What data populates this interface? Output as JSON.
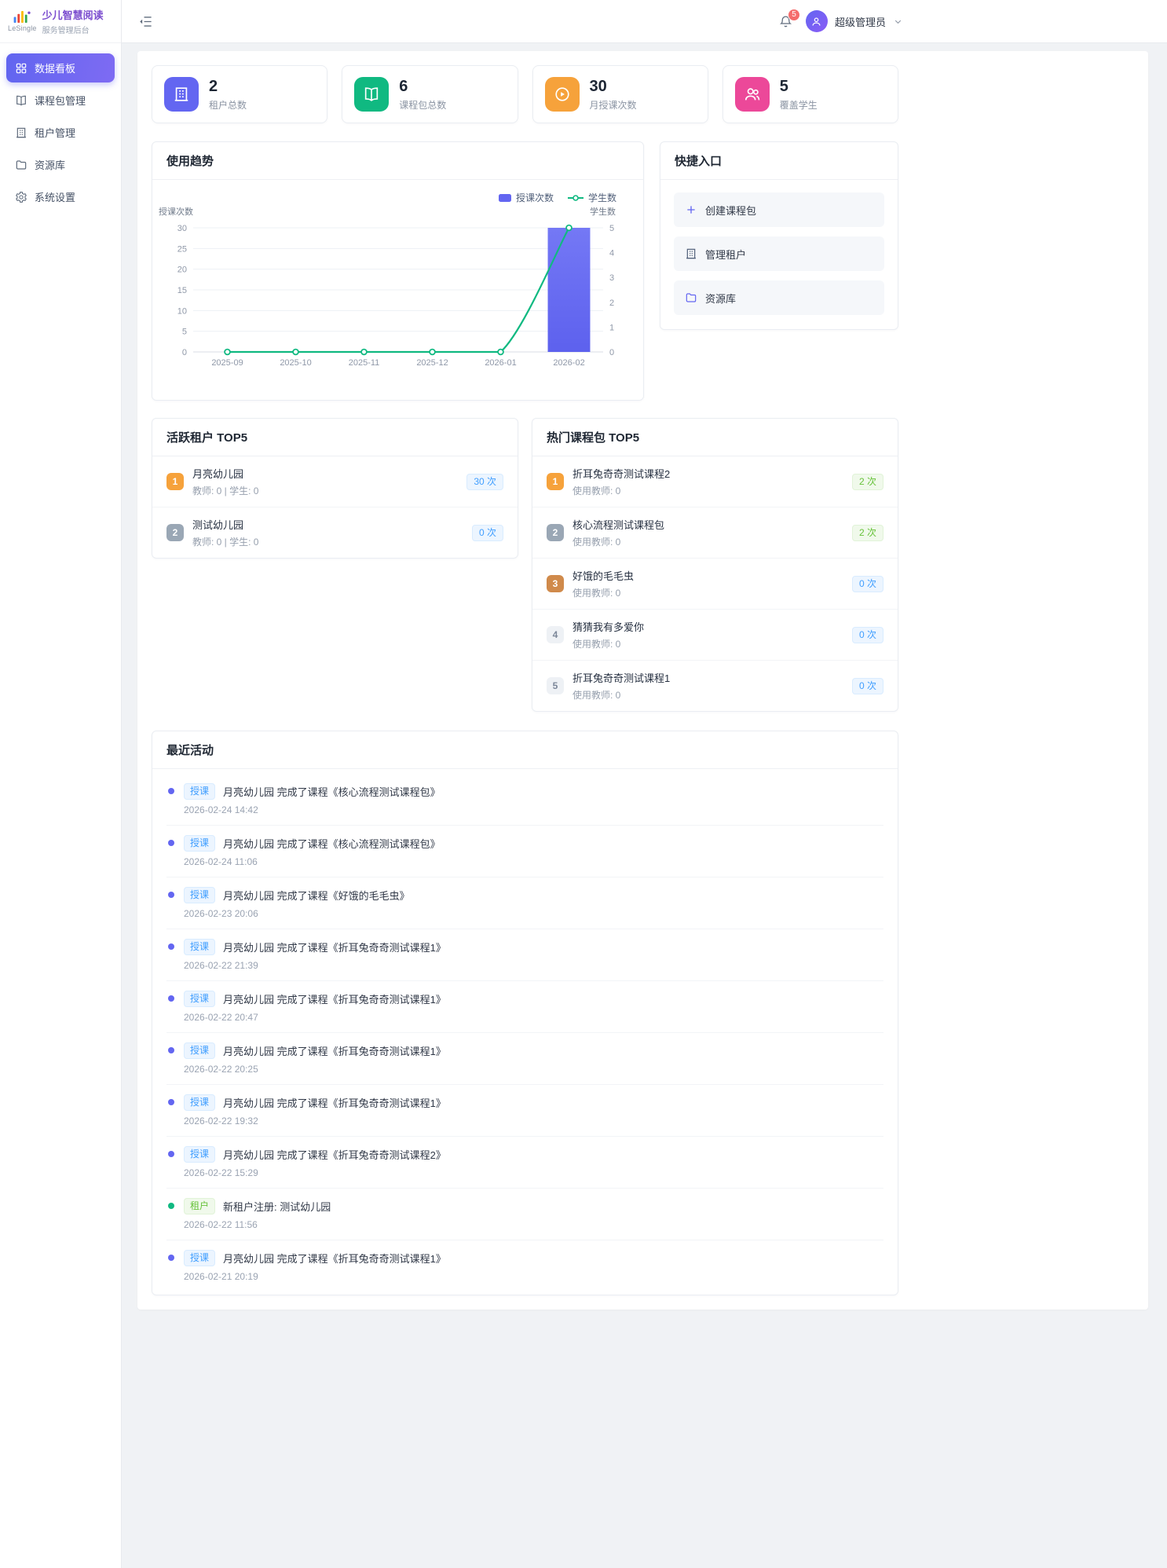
{
  "app": {
    "brand_name": "LeSingle",
    "product_name": "少儿智慧阅读",
    "product_subtitle": "服务管理后台"
  },
  "colors": {
    "accent_indigo": "#6366f1",
    "primary_blue": "#409eff",
    "success_green": "#10b981",
    "warning_orange": "#f6a23b",
    "pink": "#ec4899",
    "brand_purple": "#7b4dcf",
    "badge_red": "#f56c6c"
  },
  "sidebar": {
    "items": [
      {
        "key": "dashboard",
        "label": "数据看板",
        "icon": "dashboard",
        "state": "active"
      },
      {
        "key": "course-packages",
        "label": "课程包管理",
        "icon": "book"
      },
      {
        "key": "tenants",
        "label": "租户管理",
        "icon": "building"
      },
      {
        "key": "resources",
        "label": "资源库",
        "icon": "folder"
      },
      {
        "key": "settings",
        "label": "系统设置",
        "icon": "gear"
      }
    ]
  },
  "header": {
    "notification_count": "5",
    "user_name": "超级管理员"
  },
  "stats": [
    {
      "value": "2",
      "label": "租户总数",
      "icon": "building",
      "color": "#6366f1"
    },
    {
      "value": "6",
      "label": "课程包总数",
      "icon": "book",
      "color": "#10b981"
    },
    {
      "value": "30",
      "label": "月授课次数",
      "icon": "play",
      "color": "#f6a23b"
    },
    {
      "value": "5",
      "label": "覆盖学生",
      "icon": "users",
      "color": "#ec4899"
    }
  ],
  "chart_section": {
    "title": "使用趋势"
  },
  "chart_data": {
    "type": "bar+line",
    "categories": [
      "2025-09",
      "2025-10",
      "2025-11",
      "2025-12",
      "2026-01",
      "2026-02"
    ],
    "series": [
      {
        "name": "授课次数",
        "type": "bar",
        "values": [
          0,
          0,
          0,
          0,
          0,
          30
        ],
        "color": "#6366f1",
        "axis": "left"
      },
      {
        "name": "学生数",
        "type": "line",
        "values": [
          0,
          0,
          0,
          0,
          0,
          5
        ],
        "color": "#10b981",
        "axis": "right"
      }
    ],
    "left_axis": {
      "title": "授课次数",
      "min": 0,
      "max": 30,
      "ticks": [
        0,
        5,
        10,
        15,
        20,
        25,
        30
      ]
    },
    "right_axis": {
      "title": "学生数",
      "min": 0,
      "max": 5,
      "ticks": [
        0,
        1,
        2,
        3,
        4,
        5
      ]
    },
    "legend": [
      "授课次数",
      "学生数"
    ],
    "grid": true,
    "legend_position": "top-right"
  },
  "quick_entry": {
    "title": "快捷入口",
    "items": [
      {
        "key": "create-package",
        "label": "创建课程包",
        "icon": "plus",
        "icon_color": "#6366f1"
      },
      {
        "key": "manage-tenants",
        "label": "管理租户",
        "icon": "building",
        "icon_color": "#51607a"
      },
      {
        "key": "resource-library",
        "label": "资源库",
        "icon": "folder",
        "icon_color": "#6366f1"
      }
    ]
  },
  "active_tenants": {
    "title": "活跃租户 TOP5",
    "items": [
      {
        "rank": "1",
        "name": "月亮幼儿园",
        "meta": "教师: 0 | 学生: 0",
        "count": "30 次",
        "count_style": "primary"
      },
      {
        "rank": "2",
        "name": "测试幼儿园",
        "meta": "教师: 0 | 学生: 0",
        "count": "0 次",
        "count_style": "primary"
      }
    ]
  },
  "hot_packages": {
    "title": "热门课程包 TOP5",
    "items": [
      {
        "rank": "1",
        "name": "折耳兔奇奇测试课程2",
        "meta": "使用教师: 0",
        "count": "2 次",
        "count_style": "success"
      },
      {
        "rank": "2",
        "name": "核心流程测试课程包",
        "meta": "使用教师: 0",
        "count": "2 次",
        "count_style": "success"
      },
      {
        "rank": "3",
        "name": "好饿的毛毛虫",
        "meta": "使用教师: 0",
        "count": "0 次",
        "count_style": "primary"
      },
      {
        "rank": "4",
        "name": "猜猜我有多爱你",
        "meta": "使用教师: 0",
        "count": "0 次",
        "count_style": "primary"
      },
      {
        "rank": "5",
        "name": "折耳兔奇奇测试课程1",
        "meta": "使用教师: 0",
        "count": "0 次",
        "count_style": "primary"
      }
    ]
  },
  "recent_activities": {
    "title": "最近活动",
    "items": [
      {
        "tag": "授课",
        "tag_type": "primary",
        "text": "月亮幼儿园 完成了课程《核心流程测试课程包》",
        "time": "2026-02-24 14:42"
      },
      {
        "tag": "授课",
        "tag_type": "primary",
        "text": "月亮幼儿园 完成了课程《核心流程测试课程包》",
        "time": "2026-02-24 11:06"
      },
      {
        "tag": "授课",
        "tag_type": "primary",
        "text": "月亮幼儿园 完成了课程《好饿的毛毛虫》",
        "time": "2026-02-23 20:06"
      },
      {
        "tag": "授课",
        "tag_type": "primary",
        "text": "月亮幼儿园 完成了课程《折耳兔奇奇测试课程1》",
        "time": "2026-02-22 21:39"
      },
      {
        "tag": "授课",
        "tag_type": "primary",
        "text": "月亮幼儿园 完成了课程《折耳兔奇奇测试课程1》",
        "time": "2026-02-22 20:47"
      },
      {
        "tag": "授课",
        "tag_type": "primary",
        "text": "月亮幼儿园 完成了课程《折耳兔奇奇测试课程1》",
        "time": "2026-02-22 20:25"
      },
      {
        "tag": "授课",
        "tag_type": "primary",
        "text": "月亮幼儿园 完成了课程《折耳兔奇奇测试课程1》",
        "time": "2026-02-22 19:32"
      },
      {
        "tag": "授课",
        "tag_type": "primary",
        "text": "月亮幼儿园 完成了课程《折耳兔奇奇测试课程2》",
        "time": "2026-02-22 15:29"
      },
      {
        "tag": "租户",
        "tag_type": "success",
        "text": "新租户注册: 测试幼儿园",
        "time": "2026-02-22 11:56"
      },
      {
        "tag": "授课",
        "tag_type": "primary",
        "text": "月亮幼儿园 完成了课程《折耳兔奇奇测试课程1》",
        "time": "2026-02-21 20:19"
      }
    ]
  }
}
